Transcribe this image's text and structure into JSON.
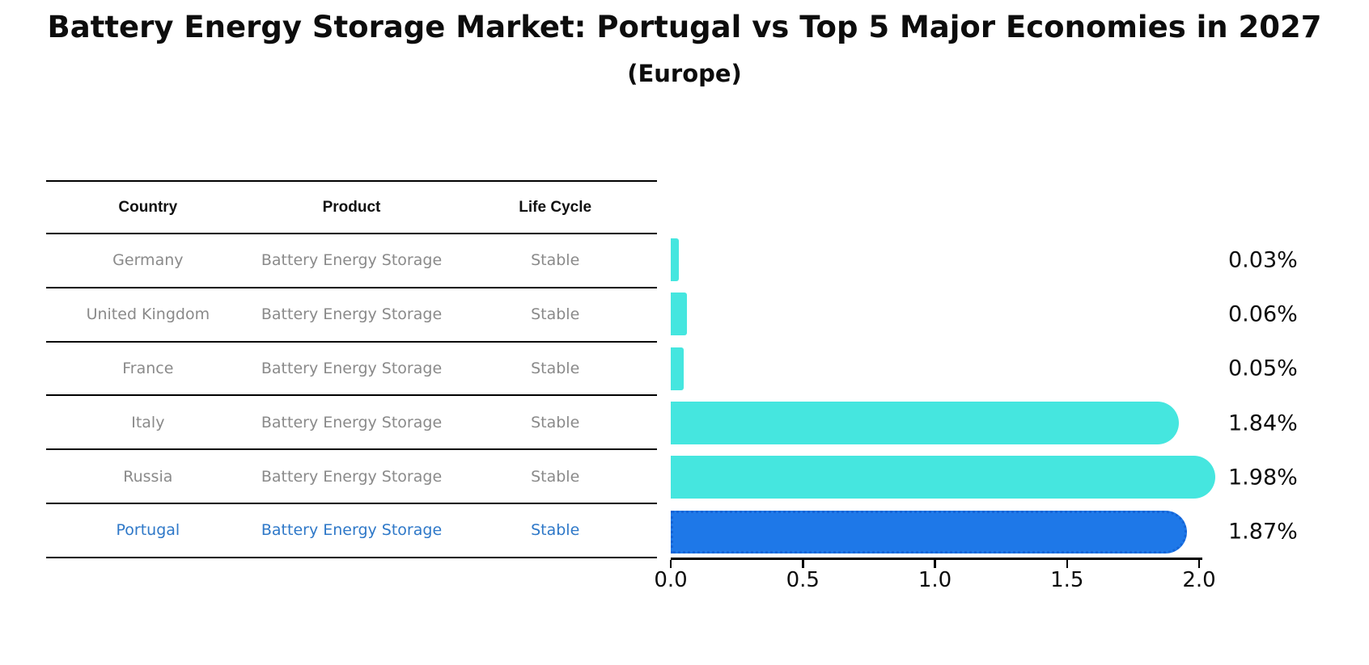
{
  "header": {
    "title": "Battery Energy Storage Market: Portugal vs Top 5 Major Economies in 2027",
    "subtitle": "(Europe)"
  },
  "colors": {
    "bar": "#45E6DF",
    "highlight_bar": "#1E78E8",
    "highlight_bar_border": "#1464D6",
    "highlight_text": "#2E78C8",
    "row_text": "#8A8A8A",
    "line": "#000000"
  },
  "table": {
    "headers": [
      "Country",
      "Product",
      "Life Cycle"
    ],
    "rows": [
      {
        "country": "Germany",
        "product": "Battery Energy Storage",
        "life_cycle": "Stable",
        "highlight": false
      },
      {
        "country": "United Kingdom",
        "product": "Battery Energy Storage",
        "life_cycle": "Stable",
        "highlight": false
      },
      {
        "country": "France",
        "product": "Battery Energy Storage",
        "life_cycle": "Stable",
        "highlight": false
      },
      {
        "country": "Italy",
        "product": "Battery Energy Storage",
        "life_cycle": "Stable",
        "highlight": false
      },
      {
        "country": "Russia",
        "product": "Battery Energy Storage",
        "life_cycle": "Stable",
        "highlight": false
      },
      {
        "country": "Portugal",
        "product": "Battery Energy Storage",
        "life_cycle": "Stable",
        "highlight": true
      }
    ]
  },
  "chart_data": {
    "type": "bar",
    "orientation": "horizontal",
    "title": "Battery Energy Storage Market: Portugal vs Top 5 Major Economies in 2027",
    "subtitle": "(Europe)",
    "categories": [
      "Germany",
      "United Kingdom",
      "France",
      "Italy",
      "Russia",
      "Portugal"
    ],
    "values": [
      0.03,
      0.06,
      0.05,
      1.84,
      1.98,
      1.87
    ],
    "value_labels": [
      "0.03%",
      "0.06%",
      "0.05%",
      "1.84%",
      "1.98%",
      "1.87%"
    ],
    "xlim": [
      0.0,
      2.0
    ],
    "xticks": [
      0.0,
      0.5,
      1.0,
      1.5,
      2.0
    ],
    "xtick_labels": [
      "0.0",
      "0.5",
      "1.0",
      "1.5",
      "2.0"
    ],
    "grid": false,
    "legend": false,
    "highlight_category": "Portugal",
    "bar_color": "#45E6DF",
    "highlight_color": "#1E78E8"
  }
}
